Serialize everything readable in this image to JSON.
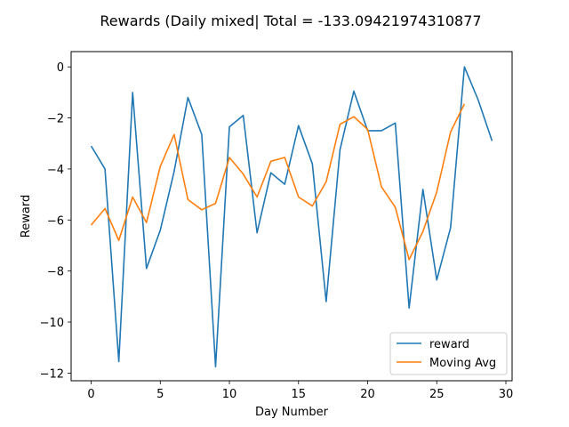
{
  "chart_data": {
    "type": "line",
    "title": "Rewards (Daily mixed| Total = -133.09421974310877",
    "xlabel": "Day Number",
    "ylabel": "Reward",
    "xlim": [
      -1.45,
      30.45
    ],
    "ylim": [
      -12.3,
      0.6
    ],
    "xticks": [
      0,
      5,
      10,
      15,
      20,
      25,
      30
    ],
    "yticks": [
      0,
      -2,
      -4,
      -6,
      -8,
      -10,
      -12
    ],
    "grid": false,
    "legend_position": "lower-right",
    "series": [
      {
        "name": "reward",
        "color": "#1f77b4",
        "x": [
          0,
          1,
          2,
          3,
          4,
          5,
          6,
          7,
          8,
          9,
          10,
          11,
          12,
          13,
          14,
          15,
          16,
          17,
          18,
          19,
          20,
          21,
          22,
          23,
          24,
          25,
          26,
          27,
          28,
          29
        ],
        "values": [
          -3.1,
          -4.0,
          -11.55,
          -1.0,
          -7.9,
          -6.4,
          -4.1,
          -1.2,
          -2.65,
          -11.75,
          -2.35,
          -1.9,
          -6.5,
          -4.15,
          -4.6,
          -2.3,
          -3.8,
          -9.2,
          -3.25,
          -0.95,
          -2.5,
          -2.5,
          -2.2,
          -9.45,
          -4.8,
          -8.35,
          -6.3,
          0.0,
          -1.3,
          -2.9
        ]
      },
      {
        "name": "Moving Avg",
        "color": "#ff7f0e",
        "x": [
          0,
          1,
          2,
          3,
          4,
          5,
          6,
          7,
          8,
          9,
          10,
          11,
          12,
          13,
          14,
          15,
          16,
          17,
          18,
          19,
          20,
          21,
          22,
          23,
          24,
          25,
          26,
          27
        ],
        "values": [
          -6.2,
          -5.55,
          -6.8,
          -5.1,
          -6.1,
          -3.9,
          -2.65,
          -5.2,
          -5.6,
          -5.35,
          -3.55,
          -4.2,
          -5.1,
          -3.7,
          -3.55,
          -5.1,
          -5.45,
          -4.5,
          -2.25,
          -1.95,
          -2.45,
          -4.7,
          -5.5,
          -7.55,
          -6.45,
          -4.9,
          -2.55,
          -1.45
        ]
      }
    ]
  }
}
